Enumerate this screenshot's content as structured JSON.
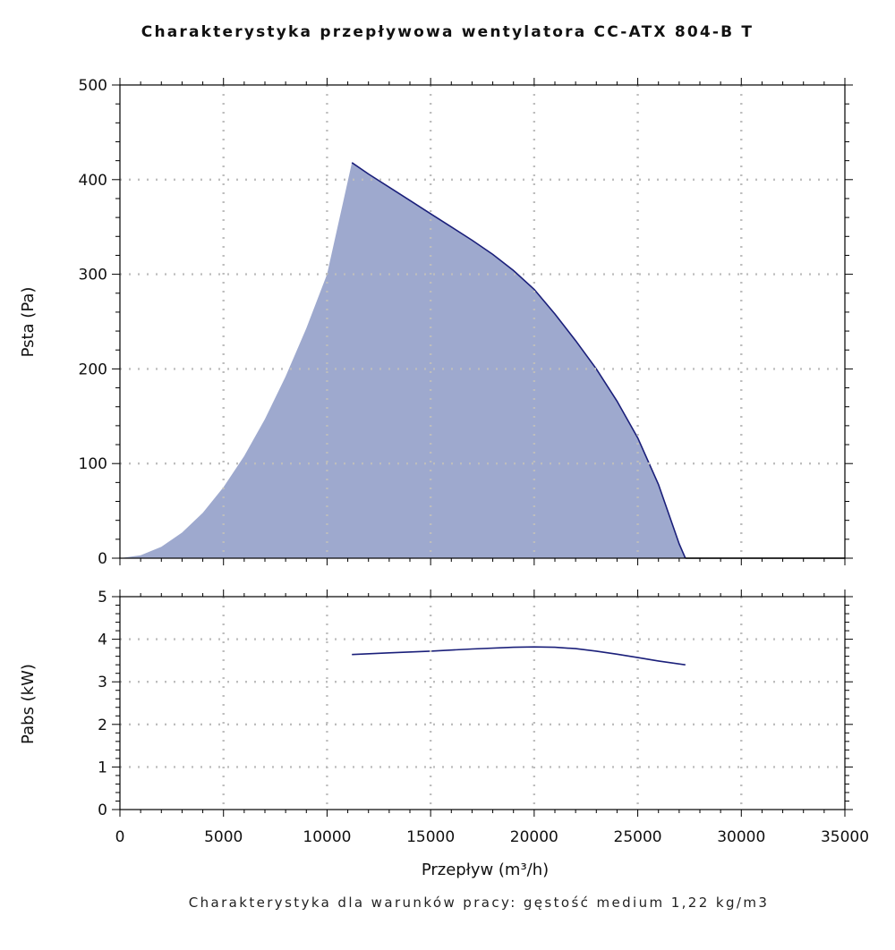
{
  "title": "Charakterystyka przepływowa wentylatora CC-ATX 804-B T",
  "footnote": "Charakterystyka dla warunków pracy: gęstość medium 1,22 kg/m3",
  "colors": {
    "fill": "#9EA9CE",
    "line": "#1A1F7A",
    "grid": "#BDBDBD",
    "axis": "#000000"
  },
  "chart_data": [
    {
      "type": "area",
      "xlabel": "Przepływ (m³/h)",
      "ylabel": "Psta (Pa)",
      "xlim": [
        0,
        35000
      ],
      "ylim": [
        0,
        500
      ],
      "grid": true,
      "yticks": [
        "0",
        "100",
        "200",
        "300",
        "400",
        "500"
      ],
      "series": [
        {
          "x": [
            0,
            1000,
            2000,
            3000,
            4000,
            5000,
            6000,
            7000,
            8000,
            9000,
            10000,
            11200,
            12000,
            13000,
            14000,
            15000,
            16000,
            17000,
            18000,
            19000,
            20000,
            21000,
            22000,
            23000,
            24000,
            25000,
            26000,
            27000,
            27300
          ],
          "y": [
            0,
            3,
            12,
            27,
            48,
            75,
            108,
            147,
            192,
            243,
            300,
            418,
            406,
            392,
            378,
            364,
            350,
            336,
            321,
            304,
            284,
            258,
            230,
            200,
            166,
            127,
            78,
            15,
            0
          ]
        }
      ]
    },
    {
      "type": "line",
      "xlabel": "Przepływ (m³/h)",
      "ylabel": "Pabs (kW)",
      "xlim": [
        0,
        35000
      ],
      "ylim": [
        0,
        5
      ],
      "grid": true,
      "xticks": [
        "0",
        "5000",
        "10000",
        "15000",
        "20000",
        "25000",
        "30000",
        "35000"
      ],
      "yticks": [
        "0",
        "1",
        "2",
        "3",
        "4",
        "5"
      ],
      "series": [
        {
          "x": [
            11200,
            13000,
            15000,
            17000,
            19000,
            20000,
            21000,
            22000,
            23000,
            24000,
            25000,
            26000,
            27300
          ],
          "y": [
            3.64,
            3.68,
            3.72,
            3.77,
            3.81,
            3.82,
            3.81,
            3.78,
            3.72,
            3.65,
            3.57,
            3.49,
            3.4
          ]
        }
      ]
    }
  ]
}
